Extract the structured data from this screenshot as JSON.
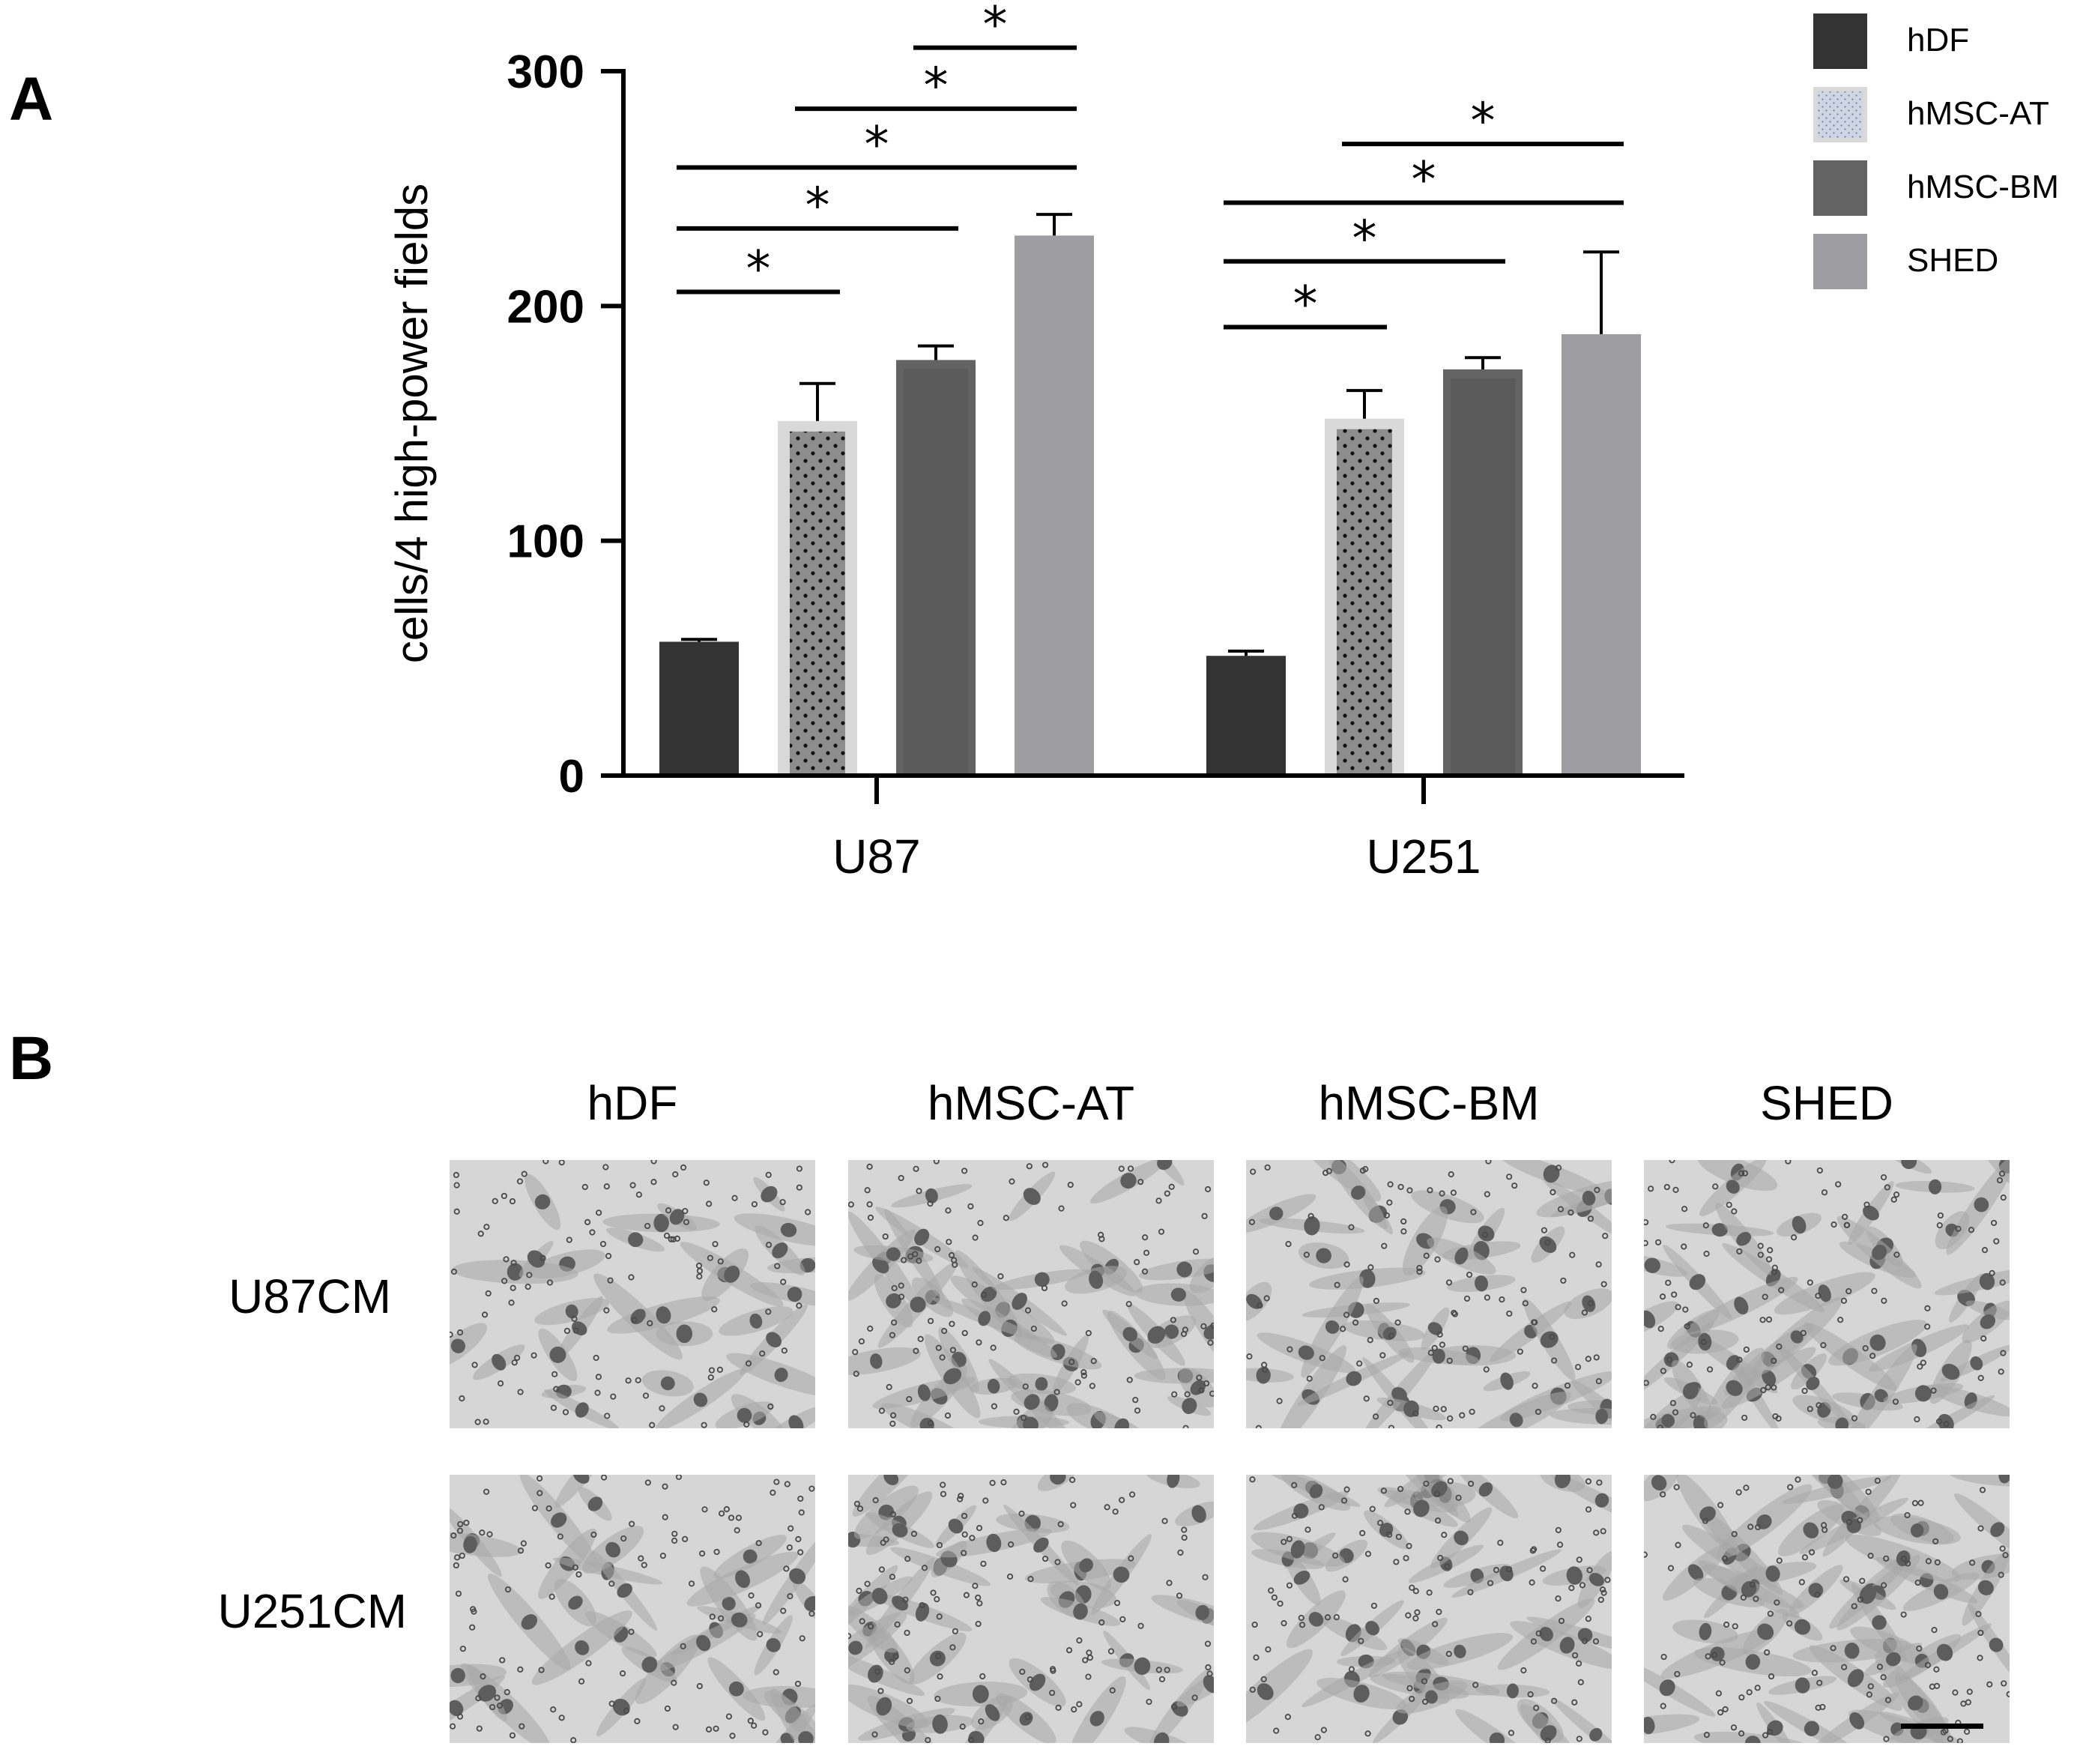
{
  "panels": {
    "a_label": "A",
    "b_label": "B"
  },
  "chart_data": {
    "type": "bar",
    "title": "",
    "xlabel": "",
    "ylabel": "cells/4 high-power fields",
    "ylim": [
      0,
      300
    ],
    "yticks": [
      0,
      100,
      200,
      300
    ],
    "categories": [
      "U87",
      "U251"
    ],
    "series": [
      {
        "name": "hDF",
        "values": [
          57,
          51
        ],
        "errors": [
          1,
          2
        ],
        "color": "#333333",
        "pattern": "solid"
      },
      {
        "name": "hMSC-AT",
        "values": [
          151,
          152
        ],
        "errors": [
          16,
          12
        ],
        "color": "#d9d9d9",
        "pattern": "dotted"
      },
      {
        "name": "hMSC-BM",
        "values": [
          177,
          173
        ],
        "errors": [
          6,
          5
        ],
        "color": "#636363",
        "pattern": "solid"
      },
      {
        "name": "SHED",
        "values": [
          230,
          188
        ],
        "errors": [
          9,
          35
        ],
        "color": "#9d9da2",
        "pattern": "solid"
      }
    ],
    "significance": [
      {
        "category": "U87",
        "from": 0,
        "to": 1,
        "y": 206,
        "label": "*"
      },
      {
        "category": "U87",
        "from": 0,
        "to": 2,
        "y": 233,
        "label": "*"
      },
      {
        "category": "U87",
        "from": 0,
        "to": 3,
        "y": 259,
        "label": "*"
      },
      {
        "category": "U87",
        "from": 1,
        "to": 3,
        "y": 284,
        "label": "*"
      },
      {
        "category": "U87",
        "from": 2,
        "to": 3,
        "y": 310,
        "label": "*"
      },
      {
        "category": "U251",
        "from": 0,
        "to": 1,
        "y": 191,
        "label": "*"
      },
      {
        "category": "U251",
        "from": 0,
        "to": 2,
        "y": 219,
        "label": "*"
      },
      {
        "category": "U251",
        "from": 0,
        "to": 3,
        "y": 244,
        "label": "*"
      },
      {
        "category": "U251",
        "from": 1,
        "to": 3,
        "y": 269,
        "label": "*"
      }
    ],
    "legend": "top-right",
    "grid": false
  },
  "panel_b": {
    "columns": [
      "hDF",
      "hMSC-AT",
      "hMSC-BM",
      "SHED"
    ],
    "rows": [
      "U87CM",
      "U251CM"
    ],
    "images": [
      {
        "density": 0.35
      },
      {
        "density": 0.75
      },
      {
        "density": 0.6
      },
      {
        "density": 0.85
      },
      {
        "density": 0.4
      },
      {
        "density": 0.7
      },
      {
        "density": 0.75
      },
      {
        "density": 0.95
      }
    ],
    "scale_bar": true
  }
}
